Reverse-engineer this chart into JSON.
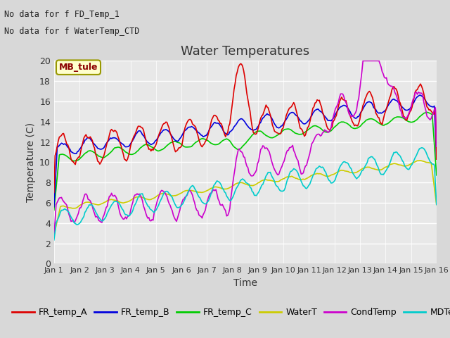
{
  "title": "Water Temperatures",
  "xlabel": "Time",
  "ylabel": "Temperature (C)",
  "text_lines": [
    "No data for f FD_Temp_1",
    "No data for f WaterTemp_CTD"
  ],
  "mb_tule_label": "MB_tule",
  "ylim": [
    0,
    20
  ],
  "yticks": [
    0,
    2,
    4,
    6,
    8,
    10,
    12,
    14,
    16,
    18,
    20
  ],
  "xtick_labels": [
    "Jan 1",
    "Jan 2",
    "Jan 3",
    "Jan 4",
    "Jan 5",
    "Jan 6",
    "Jan 7",
    "Jan 8",
    "Jan 9",
    "Jan 10",
    "Jan 11",
    "Jan 12",
    "Jan 13",
    "Jan 14",
    "Jan 15",
    "Jan 16"
  ],
  "bg_color": "#d8d8d8",
  "plot_bg_color": "#e8e8e8",
  "series": {
    "FR_temp_A": {
      "color": "#dd0000",
      "lw": 1.2
    },
    "FR_temp_B": {
      "color": "#0000dd",
      "lw": 1.2
    },
    "FR_temp_C": {
      "color": "#00cc00",
      "lw": 1.2
    },
    "WaterT": {
      "color": "#cccc00",
      "lw": 1.2
    },
    "CondTemp": {
      "color": "#cc00cc",
      "lw": 1.2
    },
    "MDTemp_A": {
      "color": "#00cccc",
      "lw": 1.2
    }
  },
  "title_fontsize": 13,
  "axis_label_fontsize": 10,
  "tick_fontsize": 9,
  "legend_fontsize": 9,
  "annotation_fontsize": 9
}
